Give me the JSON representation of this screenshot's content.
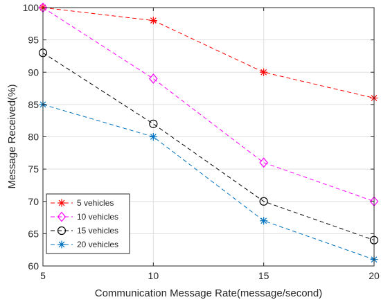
{
  "chart_data": {
    "type": "line",
    "xlabel": "Communication Message Rate(message/second)",
    "ylabel": "Message Received(%)",
    "x": [
      5,
      10,
      15,
      20
    ],
    "xlim": [
      5,
      20
    ],
    "ylim": [
      60,
      100
    ],
    "xticks": [
      "5",
      "10",
      "15",
      "20"
    ],
    "yticks": [
      "60",
      "65",
      "70",
      "75",
      "80",
      "85",
      "90",
      "95",
      "100"
    ],
    "grid": true,
    "legend_position": "bottom-left",
    "series": [
      {
        "name": "5 vehicles",
        "values": [
          100,
          98,
          90,
          86
        ],
        "color": "#ff0000",
        "marker": "asterisk"
      },
      {
        "name": "10 vehicles",
        "values": [
          100,
          89,
          76,
          70
        ],
        "color": "#ff00ff",
        "marker": "diamond"
      },
      {
        "name": "15 vehicles",
        "values": [
          93,
          82,
          70,
          64
        ],
        "color": "#000000",
        "marker": "circle"
      },
      {
        "name": "20 vehicles",
        "values": [
          85,
          80,
          67,
          61
        ],
        "color": "#0072bd",
        "marker": "asterisk"
      }
    ]
  }
}
